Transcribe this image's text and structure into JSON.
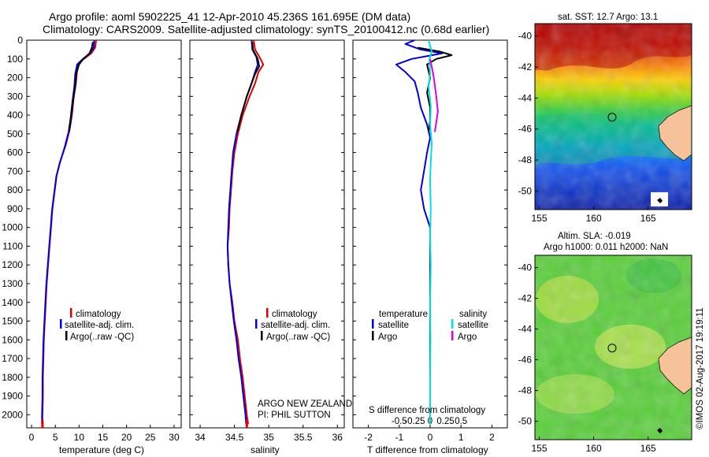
{
  "titles": {
    "line1": "Argo profile: aoml 5902225_41 12-Apr-2010 45.236S 161.695E (DM data)",
    "line2": "Climatology: CARS2009. Satellite-adjusted climatology: synTS_20100412.nc (0.68d earlier)"
  },
  "depth_ticks": [
    "0",
    "100",
    "200",
    "300",
    "400",
    "500",
    "600",
    "700",
    "800",
    "900",
    "1000",
    "1100",
    "1200",
    "1300",
    "1400",
    "1500",
    "1600",
    "1700",
    "1800",
    "1900",
    "2000"
  ],
  "colors": {
    "climatology": "#e00000",
    "satellite": "#0000e0",
    "argo": "#000000",
    "satellite_salinity": "#00e0e0",
    "argo_salinity": "#e000e0"
  },
  "chart_data": [
    {
      "id": "temperature",
      "type": "line",
      "xlabel": "temperature (deg C)",
      "xlim": [
        -1,
        31.5
      ],
      "ylim": [
        0,
        2070
      ],
      "y_inverted": true,
      "xticks": [
        "0",
        "5",
        "10",
        "15",
        "20",
        "25",
        "30"
      ],
      "legend": [
        "climatology",
        "satellite-adj. clim.",
        "Argo(..raw -QC)"
      ],
      "series": [
        {
          "name": "climatology",
          "color": "#e00000",
          "points": [
            [
              13.6,
              0
            ],
            [
              13.4,
              40
            ],
            [
              12.6,
              70
            ],
            [
              11.0,
              100
            ],
            [
              10.0,
              120
            ],
            [
              9.6,
              160
            ],
            [
              9.4,
              220
            ],
            [
              8.9,
              300
            ],
            [
              8.5,
              400
            ],
            [
              8.0,
              480
            ],
            [
              7.2,
              560
            ],
            [
              6.0,
              650
            ],
            [
              5.3,
              720
            ],
            [
              4.9,
              800
            ],
            [
              4.4,
              900
            ],
            [
              4.1,
              1000
            ],
            [
              3.8,
              1100
            ],
            [
              3.5,
              1200
            ],
            [
              3.2,
              1300
            ],
            [
              3.0,
              1400
            ],
            [
              2.8,
              1500
            ],
            [
              2.6,
              1600
            ],
            [
              2.5,
              1700
            ],
            [
              2.4,
              1800
            ],
            [
              2.4,
              1900
            ],
            [
              2.3,
              2000
            ],
            [
              2.3,
              2050
            ]
          ]
        },
        {
          "name": "satellite-adj. clim.",
          "color": "#0000e0",
          "points": [
            [
              13.2,
              0
            ],
            [
              13.1,
              40
            ],
            [
              12.3,
              70
            ],
            [
              10.8,
              100
            ],
            [
              9.6,
              130
            ],
            [
              9.2,
              180
            ],
            [
              9.0,
              250
            ],
            [
              8.6,
              330
            ],
            [
              8.2,
              420
            ],
            [
              7.8,
              490
            ],
            [
              7.0,
              570
            ],
            [
              5.9,
              660
            ],
            [
              5.2,
              730
            ],
            [
              4.8,
              810
            ],
            [
              4.3,
              910
            ],
            [
              4.0,
              1010
            ],
            [
              3.7,
              1110
            ],
            [
              3.4,
              1210
            ],
            [
              3.1,
              1310
            ],
            [
              2.9,
              1410
            ],
            [
              2.7,
              1510
            ],
            [
              2.5,
              1610
            ],
            [
              2.4,
              1710
            ],
            [
              2.3,
              1810
            ],
            [
              2.3,
              1910
            ],
            [
              2.2,
              2010
            ],
            [
              2.2,
              2050
            ]
          ]
        },
        {
          "name": "Argo(..raw -QC)",
          "color": "#000000",
          "points": [
            [
              12.9,
              10
            ],
            [
              12.7,
              40
            ],
            [
              12.2,
              70
            ],
            [
              10.9,
              100
            ],
            [
              10.0,
              130
            ],
            [
              9.4,
              180
            ],
            [
              9.2,
              250
            ],
            [
              8.7,
              330
            ],
            [
              8.3,
              420
            ],
            [
              7.9,
              490
            ]
          ]
        }
      ]
    },
    {
      "id": "salinity",
      "type": "line",
      "xlabel": "salinity",
      "xlim": [
        33.85,
        36.1
      ],
      "ylim": [
        0,
        2070
      ],
      "y_inverted": true,
      "xticks": [
        "34",
        "34.5",
        "35",
        "35.5",
        "36"
      ],
      "legend": [
        "climatology",
        "satellite-adj. clim.",
        "Argo(..raw -QC)"
      ],
      "series": [
        {
          "name": "climatology",
          "color": "#e00000",
          "points": [
            [
              34.78,
              0
            ],
            [
              34.8,
              50
            ],
            [
              34.88,
              100
            ],
            [
              34.92,
              130
            ],
            [
              34.85,
              170
            ],
            [
              34.8,
              230
            ],
            [
              34.72,
              300
            ],
            [
              34.62,
              400
            ],
            [
              34.55,
              500
            ],
            [
              34.5,
              600
            ],
            [
              34.47,
              700
            ],
            [
              34.45,
              800
            ],
            [
              34.43,
              900
            ],
            [
              34.42,
              1000
            ],
            [
              34.4,
              1100
            ],
            [
              34.41,
              1200
            ],
            [
              34.43,
              1300
            ],
            [
              34.47,
              1400
            ],
            [
              34.5,
              1500
            ],
            [
              34.55,
              1600
            ],
            [
              34.58,
              1700
            ],
            [
              34.62,
              1800
            ],
            [
              34.65,
              1900
            ],
            [
              34.68,
              2000
            ],
            [
              34.7,
              2050
            ]
          ]
        },
        {
          "name": "satellite-adj. clim.",
          "color": "#0000e0",
          "points": [
            [
              34.75,
              0
            ],
            [
              34.76,
              50
            ],
            [
              34.82,
              90
            ],
            [
              34.84,
              130
            ],
            [
              34.8,
              170
            ],
            [
              34.75,
              230
            ],
            [
              34.68,
              300
            ],
            [
              34.6,
              400
            ],
            [
              34.53,
              500
            ],
            [
              34.48,
              600
            ],
            [
              34.46,
              700
            ],
            [
              34.44,
              800
            ],
            [
              34.42,
              900
            ],
            [
              34.41,
              1000
            ],
            [
              34.4,
              1100
            ],
            [
              34.41,
              1200
            ],
            [
              34.43,
              1300
            ],
            [
              34.46,
              1400
            ],
            [
              34.49,
              1500
            ],
            [
              34.53,
              1600
            ],
            [
              34.56,
              1700
            ],
            [
              34.6,
              1800
            ],
            [
              34.63,
              1900
            ],
            [
              34.66,
              2000
            ],
            [
              34.67,
              2050
            ]
          ]
        },
        {
          "name": "Argo(..raw -QC)",
          "color": "#000000",
          "points": [
            [
              34.76,
              10
            ],
            [
              34.77,
              50
            ],
            [
              34.84,
              100
            ],
            [
              34.86,
              140
            ],
            [
              34.8,
              180
            ],
            [
              34.74,
              240
            ],
            [
              34.68,
              300
            ],
            [
              34.6,
              400
            ],
            [
              34.54,
              490
            ]
          ]
        }
      ],
      "annotations": [
        "ARGO NEW ZEALAND",
        "PI: PHIL SUTTON"
      ]
    },
    {
      "id": "difference",
      "type": "line",
      "xlabel": "T difference from climatology",
      "top_xlabel": "S difference from climatology",
      "xlim": [
        -2.5,
        2.5
      ],
      "ylim": [
        0,
        2070
      ],
      "y_inverted": true,
      "xticks": [
        "-2",
        "-1",
        "0",
        "1",
        "2"
      ],
      "top_xticks": [
        "-0.5",
        "-0.25",
        "0",
        "0.25",
        "0.5"
      ],
      "legend_left_title": "temperature",
      "legend_right_title": "salinity",
      "legend": [
        "satellite",
        "Argo",
        "satellite",
        "Argo"
      ],
      "series": [
        {
          "name": "satellite",
          "color": "#0000e0",
          "points": [
            [
              -0.5,
              0
            ],
            [
              -0.8,
              20
            ],
            [
              -0.3,
              50
            ],
            [
              0.4,
              70
            ],
            [
              -0.6,
              100
            ],
            [
              -1.1,
              130
            ],
            [
              -0.8,
              170
            ],
            [
              -0.5,
              220
            ],
            [
              -0.4,
              280
            ],
            [
              -0.3,
              360
            ],
            [
              -0.1,
              450
            ],
            [
              0.0,
              520
            ],
            [
              -0.1,
              600
            ],
            [
              -0.2,
              700
            ],
            [
              -0.3,
              800
            ],
            [
              -0.2,
              900
            ],
            [
              0.0,
              1000
            ],
            [
              0.0,
              1100
            ],
            [
              0.0,
              1200
            ],
            [
              0.0,
              1400
            ],
            [
              0.0,
              1600
            ],
            [
              0.0,
              1800
            ],
            [
              0.0,
              2050
            ]
          ]
        },
        {
          "name": "Argo",
          "color": "#000000",
          "points": [
            [
              -0.4,
              40
            ],
            [
              0.3,
              60
            ],
            [
              0.7,
              80
            ],
            [
              0.2,
              100
            ],
            [
              -0.1,
              130
            ],
            [
              0.0,
              200
            ],
            [
              -0.1,
              280
            ],
            [
              0.0,
              360
            ],
            [
              0.0,
              430
            ],
            [
              -0.05,
              490
            ]
          ]
        },
        {
          "name": "satellite",
          "color": "#00e0e0",
          "points": [
            [
              -0.05,
              0
            ],
            [
              0.05,
              60
            ],
            [
              -0.02,
              100
            ],
            [
              0.0,
              180
            ],
            [
              -0.05,
              250
            ],
            [
              0.02,
              350
            ],
            [
              0.0,
              450
            ],
            [
              0.05,
              550
            ],
            [
              0.02,
              650
            ],
            [
              0.0,
              750
            ],
            [
              0.02,
              900
            ],
            [
              0.0,
              1050
            ],
            [
              0.02,
              1200
            ],
            [
              0.0,
              1400
            ],
            [
              0.01,
              1600
            ],
            [
              0.0,
              1800
            ],
            [
              0.0,
              2050
            ]
          ]
        },
        {
          "name": "Argo",
          "color": "#e000e0",
          "points": [
            [
              0.0,
              100
            ],
            [
              0.1,
              180
            ],
            [
              0.15,
              240
            ],
            [
              0.2,
              300
            ],
            [
              0.25,
              380
            ],
            [
              0.2,
              440
            ],
            [
              0.15,
              490
            ]
          ]
        }
      ]
    }
  ],
  "maps": {
    "top_title": "sat. SST: 12.7 Argo: 13.1",
    "bottom_title1": "Altim. SLA: -0.019",
    "bottom_title2": "Argo h1000: 0.011 h2000: NaN",
    "lat_ticks": [
      "-40",
      "-42",
      "-44",
      "-46",
      "-48",
      "-50"
    ],
    "lon_ticks": [
      "155",
      "160",
      "165"
    ],
    "lat_range": [
      -51.2,
      -39.2
    ],
    "lon_range": [
      154.6,
      169.0
    ],
    "argo_position": {
      "lat": -45.236,
      "lon": 161.695
    },
    "credit": "©IMOS 02-Aug-2017 19:19:11"
  }
}
